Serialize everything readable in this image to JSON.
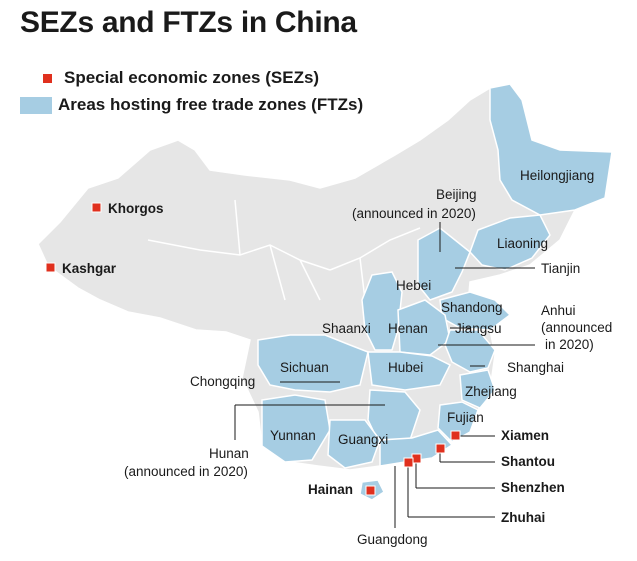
{
  "title": "SEZs and FTZs in China",
  "legend": {
    "sez_label": "Special economic zones (SEZs)",
    "ftz_label": "Areas hosting free trade zones (FTZs)"
  },
  "colors": {
    "sez": "#e0301e",
    "ftz": "#a6cde3",
    "land": "#e6e6e6",
    "border": "#ffffff"
  },
  "provinces": {
    "heilongjiang": "Heilongjiang",
    "beijing": "Beijing",
    "beijing_note": "(announced in 2020)",
    "liaoning": "Liaoning",
    "tianjin": "Tianjin",
    "hebei": "Hebei",
    "shandong": "Shandong",
    "anhui": "Anhui",
    "anhui_note1": "(announced",
    "anhui_note2": "in 2020)",
    "shaanxi": "Shaanxi",
    "henan": "Henan",
    "jiangsu": "Jiangsu",
    "sichuan": "Sichuan",
    "shanghai": "Shanghai",
    "chongqing": "Chongqing",
    "hubei": "Hubei",
    "zhejiang": "Zhejiang",
    "fujian": "Fujian",
    "hunan": "Hunan",
    "hunan_note": "(announced in 2020)",
    "yunnan": "Yunnan",
    "guangxi": "Guangxi",
    "guangdong": "Guangdong"
  },
  "sezs": {
    "khorgos": "Khorgos",
    "kashgar": "Kashgar",
    "xiamen": "Xiamen",
    "shantou": "Shantou",
    "shenzhen": "Shenzhen",
    "zhuhai": "Zhuhai",
    "hainan": "Hainan"
  }
}
